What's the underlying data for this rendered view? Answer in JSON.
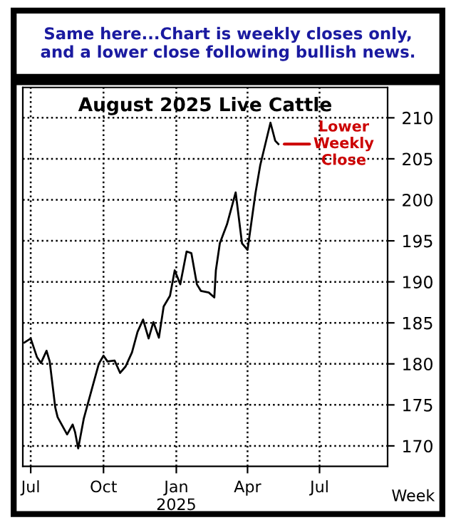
{
  "chart_data": {
    "type": "line",
    "title": "Same here...Chart is weekly closes only,\nand a lower close following bullish news.",
    "subtitle": "August 2025 Live Cattle",
    "xlabel": "Week",
    "x": [
      "2024-06-23",
      "2024-07-01",
      "2024-07-09",
      "2024-07-14",
      "2024-07-21",
      "2024-07-25",
      "2024-08-01",
      "2024-08-04",
      "2024-08-16",
      "2024-08-23",
      "2024-08-26",
      "2024-08-30",
      "2024-09-06",
      "2024-09-17",
      "2024-09-25",
      "2024-10-01",
      "2024-10-06",
      "2024-10-15",
      "2024-10-22",
      "2024-10-29",
      "2024-11-06",
      "2024-11-13",
      "2024-11-20",
      "2024-11-27",
      "2024-12-03",
      "2024-12-10",
      "2024-12-16",
      "2024-12-24",
      "2024-12-30",
      "2025-01-06",
      "2025-01-14",
      "2025-01-20",
      "2025-01-27",
      "2025-02-01",
      "2025-02-11",
      "2025-02-18",
      "2025-02-20",
      "2025-02-25",
      "2025-03-06",
      "2025-03-17",
      "2025-03-25",
      "2025-04-01",
      "2025-04-11",
      "2025-04-17",
      "2025-04-30",
      "2025-05-06",
      "2025-05-10"
    ],
    "series": [
      {
        "color": "#000000",
        "values": [
          182.6,
          183.1,
          180.8,
          180.1,
          181.6,
          180.3,
          174.7,
          173.5,
          171.4,
          172.6,
          171.7,
          169.7,
          173.3,
          177.2,
          180.0,
          181.0,
          180.3,
          180.4,
          178.9,
          179.7,
          181.4,
          183.9,
          185.4,
          183.1,
          185.1,
          183.2,
          187.0,
          188.3,
          191.4,
          189.7,
          193.7,
          193.5,
          189.7,
          188.9,
          188.7,
          188.1,
          191.4,
          194.7,
          197.0,
          200.9,
          194.7,
          193.9,
          200.8,
          204.2,
          209.4,
          207.2,
          206.8
        ]
      }
    ],
    "xlim": [
      "2024-06-21",
      "2025-09-25"
    ],
    "xticks": [
      {
        "value": "2024-07-01",
        "label": "Jul"
      },
      {
        "value": "2024-10-01",
        "label": "Oct"
      },
      {
        "value": "2025-01-01",
        "label": "Jan\n2025"
      },
      {
        "value": "2025-04-01",
        "label": "Apr"
      },
      {
        "value": "2025-07-01",
        "label": "Jul"
      }
    ],
    "ylim": [
      167.5,
      213.7
    ],
    "yticks": [
      170,
      175,
      180,
      185,
      190,
      195,
      200,
      205,
      210
    ],
    "annotations": [
      {
        "text": "Lower\nWeekly\nClose",
        "x": "2025-05-10",
        "y": 206.8
      }
    ],
    "grid": true,
    "line_style": "solid",
    "marker": "none",
    "legend": false
  }
}
